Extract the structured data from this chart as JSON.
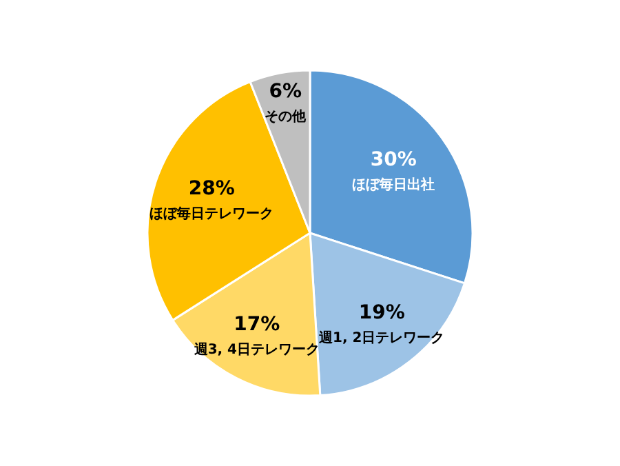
{
  "chart_data": {
    "type": "pie",
    "categories": [
      "ほぼ毎日出社",
      "週1, 2日テレワーク",
      "週3, 4日テレワーク",
      "ほぼ毎日テレワーク",
      "その他"
    ],
    "values": [
      30,
      19,
      17,
      28,
      6
    ],
    "value_labels": [
      "30%",
      "19%",
      "17%",
      "28%",
      "6%"
    ],
    "colors": [
      "#5b9bd5",
      "#9dc3e6",
      "#ffd966",
      "#ffc000",
      "#bfbfbf"
    ],
    "legend": false
  }
}
